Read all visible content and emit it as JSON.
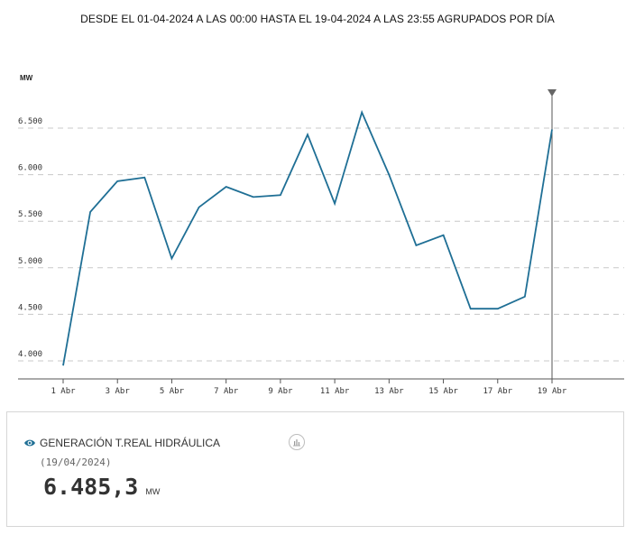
{
  "header": {
    "title": "DESDE EL 01-04-2024 A LAS 00:00 HASTA EL 19-04-2024 A LAS 23:55 AGRUPADOS POR DÍA"
  },
  "chart_data": {
    "type": "line",
    "ylabel": "MW",
    "ylim": [
      3950,
      6700
    ],
    "yticks": [
      4000,
      4500,
      5000,
      5500,
      6000,
      6500
    ],
    "ytick_labels": [
      "4.000",
      "4.500",
      "5.000",
      "5.500",
      "6.000",
      "6.500"
    ],
    "xticks": [
      1,
      3,
      5,
      7,
      9,
      11,
      13,
      15,
      17,
      19
    ],
    "xtick_labels": [
      "1 Abr",
      "3 Abr",
      "5 Abr",
      "7 Abr",
      "9 Abr",
      "11 Abr",
      "13 Abr",
      "15 Abr",
      "17 Abr",
      "19 Abr"
    ],
    "series": [
      {
        "name": "GENERACIÓN T.REAL HIDRÁULICA",
        "color": "#1f6f95",
        "x": [
          1,
          2,
          3,
          4,
          5,
          6,
          7,
          8,
          9,
          10,
          11,
          12,
          13,
          14,
          15,
          16,
          17,
          18,
          19
        ],
        "values": [
          3950,
          5600,
          5930,
          5970,
          5100,
          5650,
          5870,
          5760,
          5780,
          6430,
          5690,
          6670,
          6000,
          5240,
          5350,
          4560,
          4560,
          4690,
          6485
        ]
      }
    ],
    "cursor_x": 19,
    "grid": "horizontal-dashed"
  },
  "info_card": {
    "series_label": "GENERACIÓN T.REAL HIDRÁULICA",
    "date": "(19/04/2024)",
    "value": "6.485,3",
    "unit": "MW",
    "eye_icon": "eye-icon",
    "chart_icon": "bar-chart-icon"
  }
}
